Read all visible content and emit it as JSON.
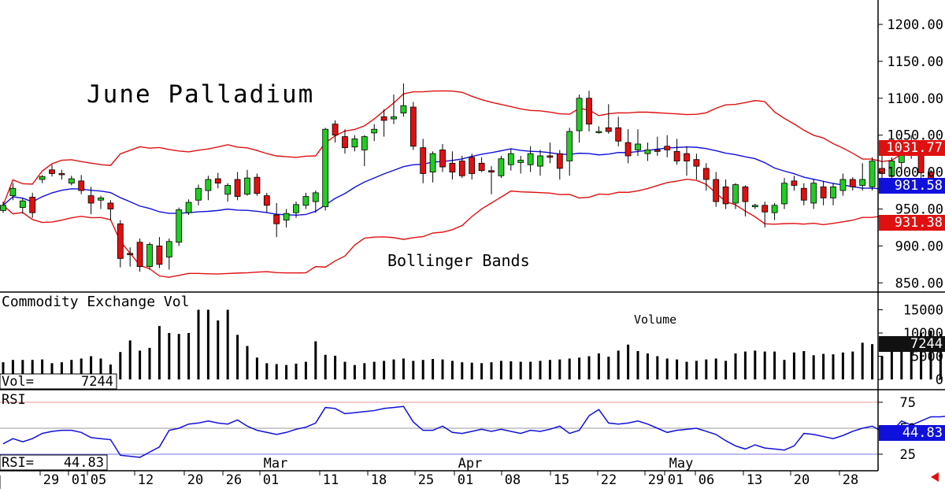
{
  "chart_data": [
    {
      "type": "candlestick",
      "title": "June Palladium",
      "annotation": "Bollinger Bands",
      "y_ticks": [
        "850.00",
        "900.00",
        "950.00",
        "1000.00",
        "1050.00",
        "1100.00",
        "1150.00",
        "1200.00"
      ],
      "ylim": [
        838,
        1215
      ],
      "last_values": {
        "upper_band": "1031.77",
        "middle_band": "981.58",
        "lower_band": "931.38"
      },
      "colors": {
        "up": "#22cc22",
        "down": "#e01010",
        "bands": "#e01010",
        "middle": "#1010dd"
      },
      "ohlc": [
        [
          948,
          960,
          945,
          955
        ],
        [
          968,
          985,
          962,
          978
        ],
        [
          952,
          965,
          944,
          961
        ],
        [
          966,
          972,
          938,
          945
        ],
        [
          990,
          996,
          985,
          994
        ],
        [
          1003,
          1010,
          994,
          998
        ],
        [
          998,
          1003,
          990,
          997
        ],
        [
          985,
          995,
          982,
          991
        ],
        [
          988,
          996,
          970,
          975
        ],
        [
          968,
          980,
          943,
          958
        ],
        [
          962,
          968,
          950,
          965
        ],
        [
          958,
          962,
          935,
          950
        ],
        [
          930,
          935,
          871,
          883
        ],
        [
          890,
          898,
          872,
          888
        ],
        [
          905,
          910,
          865,
          872
        ],
        [
          872,
          905,
          868,
          902
        ],
        [
          900,
          912,
          870,
          875
        ],
        [
          885,
          910,
          868,
          906
        ],
        [
          905,
          952,
          900,
          949
        ],
        [
          945,
          963,
          942,
          959
        ],
        [
          962,
          983,
          955,
          978
        ],
        [
          975,
          995,
          962,
          990
        ],
        [
          991,
          999,
          978,
          985
        ],
        [
          970,
          985,
          960,
          982
        ],
        [
          990,
          1000,
          962,
          967
        ],
        [
          970,
          1003,
          968,
          992
        ],
        [
          993,
          998,
          968,
          971
        ],
        [
          968,
          972,
          945,
          955
        ],
        [
          942,
          958,
          912,
          930
        ],
        [
          935,
          950,
          925,
          944
        ],
        [
          945,
          960,
          938,
          956
        ],
        [
          955,
          972,
          950,
          967
        ],
        [
          960,
          975,
          945,
          972
        ],
        [
          953,
          1060,
          948,
          1058
        ],
        [
          1065,
          1070,
          1040,
          1050
        ],
        [
          1048,
          1058,
          1025,
          1033
        ],
        [
          1034,
          1050,
          1028,
          1045
        ],
        [
          1030,
          1050,
          1008,
          1048
        ],
        [
          1053,
          1065,
          1042,
          1058
        ],
        [
          1075,
          1085,
          1048,
          1070
        ],
        [
          1072,
          1105,
          1065,
          1075
        ],
        [
          1080,
          1120,
          1075,
          1090
        ],
        [
          1088,
          1095,
          1030,
          1035
        ],
        [
          1033,
          1045,
          985,
          998
        ],
        [
          1000,
          1028,
          986,
          1025
        ],
        [
          1030,
          1038,
          1000,
          1007
        ],
        [
          1012,
          1028,
          990,
          1000
        ],
        [
          1015,
          1022,
          992,
          995
        ],
        [
          1020,
          1025,
          990,
          998
        ],
        [
          1012,
          1020,
          1000,
          1002
        ],
        [
          1002,
          1008,
          970,
          1000
        ],
        [
          995,
          1022,
          992,
          1018
        ],
        [
          1010,
          1032,
          1002,
          1025
        ],
        [
          1013,
          1022,
          998,
          1016
        ],
        [
          1010,
          1035,
          1000,
          1025
        ],
        [
          1008,
          1030,
          995,
          1022
        ],
        [
          1022,
          1040,
          1012,
          1020
        ],
        [
          1025,
          1030,
          990,
          1005
        ],
        [
          1015,
          1060,
          995,
          1055
        ],
        [
          1056,
          1105,
          1040,
          1100
        ],
        [
          1100,
          1110,
          1055,
          1065
        ],
        [
          1055,
          1062,
          1052,
          1055
        ],
        [
          1060,
          1092,
          1052,
          1055
        ],
        [
          1060,
          1075,
          1035,
          1042
        ],
        [
          1040,
          1058,
          1012,
          1022
        ],
        [
          1030,
          1058,
          1022,
          1038
        ],
        [
          1025,
          1040,
          1015,
          1030
        ],
        [
          1030,
          1048,
          1022,
          1028
        ],
        [
          1035,
          1050,
          1020,
          1030
        ],
        [
          1028,
          1045,
          1010,
          1015
        ],
        [
          1025,
          1035,
          995,
          1015
        ],
        [
          1017,
          1025,
          990,
          1008
        ],
        [
          1005,
          1012,
          975,
          990
        ],
        [
          990,
          1000,
          953,
          960
        ],
        [
          980,
          990,
          950,
          957
        ],
        [
          958,
          985,
          950,
          983
        ],
        [
          980,
          982,
          940,
          960
        ],
        [
          953,
          957,
          950,
          955
        ],
        [
          955,
          960,
          925,
          946
        ],
        [
          945,
          958,
          935,
          955
        ],
        [
          957,
          992,
          950,
          985
        ],
        [
          988,
          995,
          975,
          982
        ],
        [
          978,
          985,
          955,
          962
        ],
        [
          958,
          990,
          950,
          985
        ],
        [
          980,
          988,
          955,
          965
        ],
        [
          965,
          985,
          955,
          980
        ],
        [
          975,
          998,
          968,
          990
        ],
        [
          990,
          993,
          975,
          980
        ],
        [
          982,
          1012,
          975,
          990
        ],
        [
          980,
          1020,
          975,
          1015
        ],
        [
          1005,
          1025,
          988,
          998
        ],
        [
          995,
          1020,
          990,
          1015
        ],
        [
          1013,
          1045,
          1005,
          1032
        ],
        [
          1030,
          1050,
          1018,
          1033
        ],
        [
          1035,
          1040,
          990,
          999
        ],
        [
          1000,
          1003,
          973,
          979
        ]
      ]
    },
    {
      "type": "bar",
      "title": "Commodity Exchange Vol",
      "annotation": "Volume",
      "y_ticks": [
        "0",
        "5000",
        "10000",
        "15000"
      ],
      "ylim": [
        0,
        18000
      ],
      "readout": {
        "label": "Vol=",
        "value": "7244"
      },
      "last_value": "7244",
      "values": [
        3700,
        4200,
        4200,
        4200,
        4300,
        3500,
        3700,
        4200,
        4500,
        5000,
        4500,
        3200,
        5900,
        8400,
        6200,
        6800,
        11500,
        10000,
        9800,
        10000,
        15000,
        15000,
        12700,
        15000,
        9600,
        7200,
        4700,
        3500,
        3300,
        3100,
        3400,
        3800,
        8200,
        5300,
        5100,
        3800,
        3100,
        3500,
        3800,
        4000,
        4300,
        4500,
        4000,
        4200,
        4400,
        4300,
        4000,
        3700,
        3600,
        3500,
        3700,
        4000,
        3900,
        3800,
        3800,
        4000,
        4200,
        4300,
        4500,
        4700,
        5000,
        5600,
        4900,
        6200,
        7500,
        6100,
        5600,
        5000,
        4500,
        4300,
        3800,
        4000,
        4300,
        4500,
        4000,
        5600,
        6000,
        6200,
        6000,
        6000,
        4200,
        5800,
        6100,
        5200,
        5500,
        5400,
        5800,
        6000,
        7900,
        7600,
        5000,
        8700,
        9000,
        8200,
        10000,
        10500,
        9800,
        12500,
        7244
      ]
    },
    {
      "type": "line",
      "title": "RSI",
      "y_ticks": [
        "25",
        "50",
        "75"
      ],
      "ylim": [
        18,
        82
      ],
      "readout": {
        "label": "RSI=",
        "value": "44.83"
      },
      "last_value": "44.83",
      "x_month_labels": [
        "Mar",
        "Apr",
        "May"
      ],
      "x_day_labels": [
        "29",
        "01",
        "05",
        "12",
        "20",
        "26",
        "01",
        "11",
        "18",
        "25",
        "01",
        "08",
        "15",
        "22",
        "29",
        "01",
        "06",
        "13",
        "20",
        "28"
      ],
      "values": [
        35,
        40,
        37,
        40,
        45,
        47,
        48,
        48,
        46,
        41,
        40,
        39,
        24,
        23,
        22,
        27,
        32,
        48,
        50,
        54,
        55,
        57,
        55,
        54,
        58,
        52,
        48,
        46,
        44,
        46,
        49,
        51,
        55,
        70,
        69,
        64,
        65,
        66,
        67,
        69,
        70,
        71,
        56,
        48,
        48,
        52,
        46,
        45,
        47,
        49,
        47,
        49,
        47,
        45,
        48,
        47,
        49,
        52,
        45,
        48,
        62,
        68,
        55,
        54,
        55,
        57,
        54,
        50,
        46,
        48,
        49,
        50,
        47,
        44,
        38,
        33,
        30,
        34,
        31,
        30,
        29,
        33,
        45,
        44,
        42,
        40,
        43,
        47,
        50,
        52,
        47,
        47,
        57,
        53,
        57,
        61,
        61,
        62,
        48,
        44.83
      ]
    }
  ]
}
